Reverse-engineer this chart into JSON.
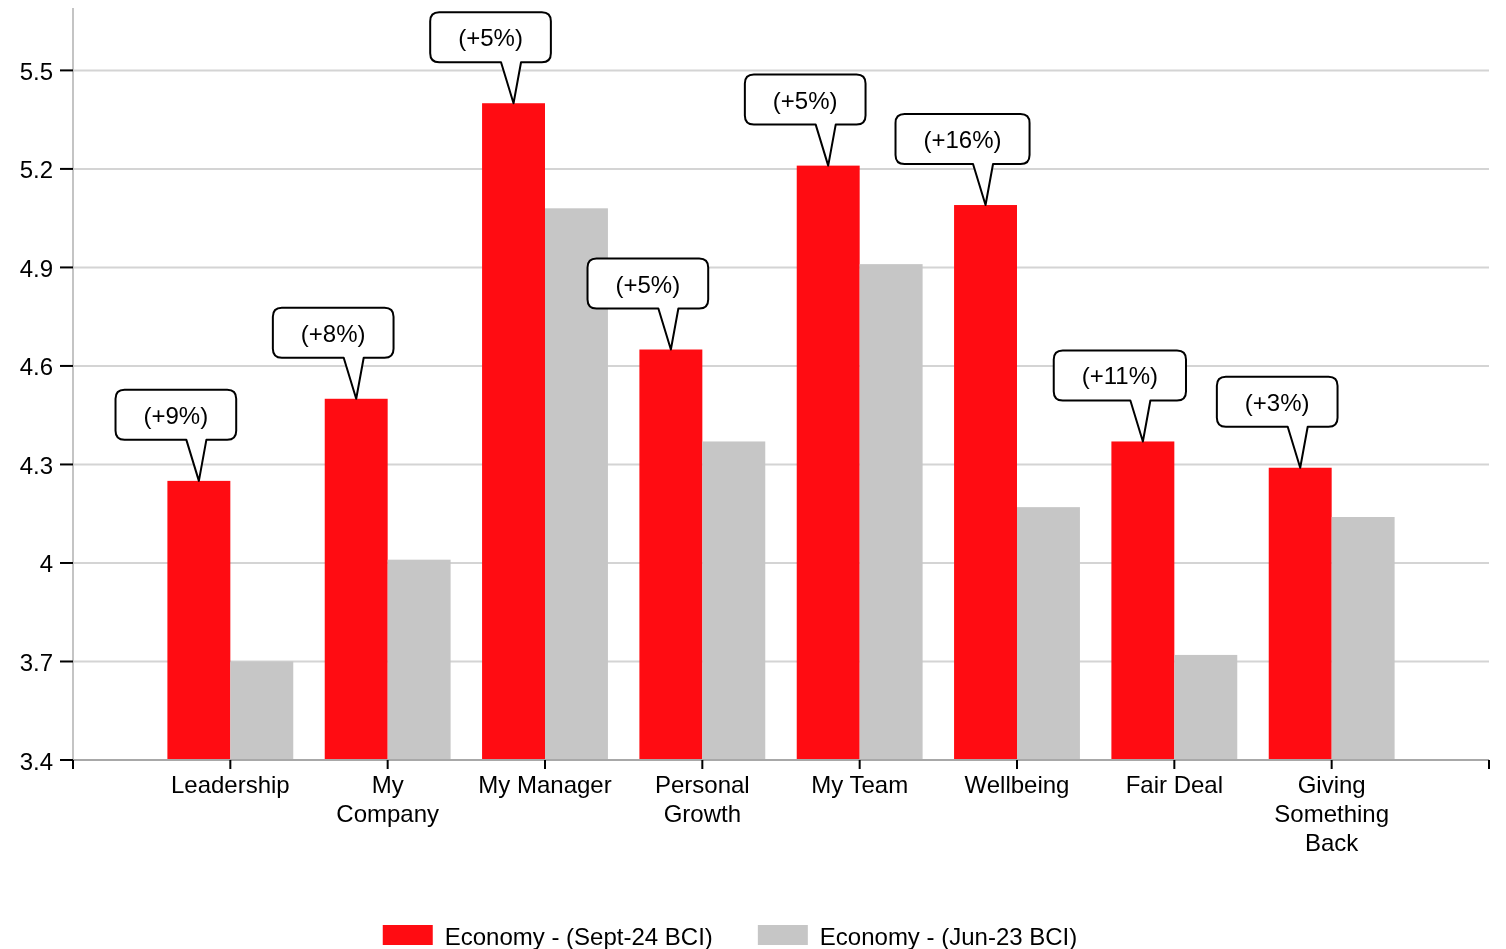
{
  "chart_data": {
    "type": "bar",
    "categories": [
      "Leadership",
      "My Company",
      "My Manager",
      "Personal Growth",
      "My Team",
      "Wellbeing",
      "Fair Deal",
      "Giving Something Back"
    ],
    "series": [
      {
        "name": "Economy - (Sept-24 BCI)",
        "color": "#ff0c12",
        "values": [
          4.25,
          4.5,
          5.4,
          4.65,
          5.21,
          5.09,
          4.37,
          4.29
        ]
      },
      {
        "name": "Economy - (Jun-23 BCI)",
        "color": "#c6c6c6",
        "values": [
          3.7,
          4.01,
          5.08,
          4.37,
          4.91,
          4.17,
          3.72,
          4.14
        ]
      }
    ],
    "ylim": [
      3.4,
      5.69
    ],
    "yticks": [
      3.4,
      3.7,
      4,
      4.3,
      4.6,
      4.9,
      5.2,
      5.5
    ],
    "grid": "y",
    "legend": "bottom",
    "annotations": [
      {
        "text": "(+9%)",
        "x": "Leadership",
        "y": 4.25
      },
      {
        "text": "(+8%)",
        "x": "My Company",
        "y": 4.5
      },
      {
        "text": "(+5%)",
        "x": "My Manager",
        "y": 5.4
      },
      {
        "text": "(+5%)",
        "x": "Personal Growth",
        "y": 4.65
      },
      {
        "text": "(+5%)",
        "x": "My Team",
        "y": 5.21
      },
      {
        "text": "(+16%)",
        "x": "Wellbeing",
        "y": 5.09
      },
      {
        "text": "(+11%)",
        "x": "Fair Deal",
        "y": 4.37
      },
      {
        "text": "(+3%)",
        "x": "Giving Something Back",
        "y": 4.29
      }
    ]
  }
}
